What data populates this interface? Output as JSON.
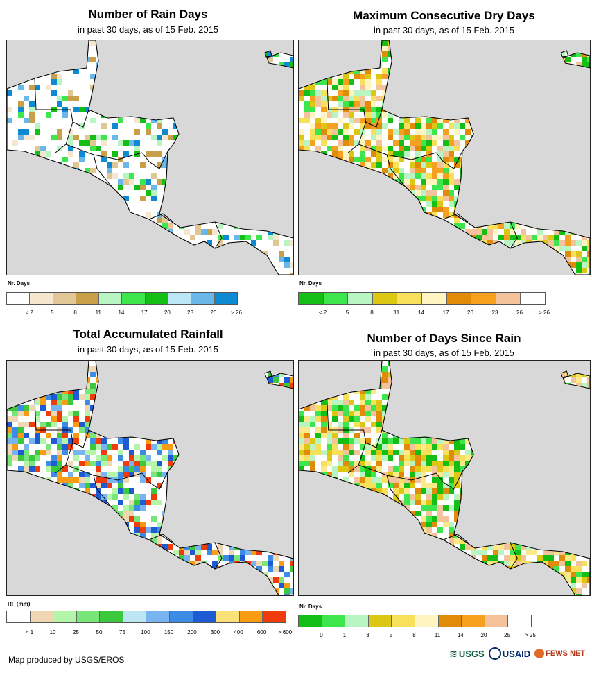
{
  "panels": [
    {
      "title": "Number of Rain Days",
      "subtitle": "in past 30 days, as of 15 Feb. 2015",
      "legend_title": "Nr. Days",
      "colors": [
        "#ffffff",
        "#f5e6cf",
        "#e2c796",
        "#c9a04a",
        "#b9f5c3",
        "#3ee64e",
        "#14be14",
        "#bde6f5",
        "#6ab7ea",
        "#0d8ad2"
      ],
      "tick_labels": [
        "< 2",
        "5",
        "8",
        "11",
        "14",
        "17",
        "20",
        "23",
        "26",
        "> 26"
      ],
      "pixel_palette": [
        "#f5e6cf",
        "#e2c796",
        "#c9a04a",
        "#b9f5c3",
        "#3ee64e",
        "#14be14",
        "#6ab7ea",
        "#0d8ad2"
      ]
    },
    {
      "title": "Maximum Consecutive Dry Days",
      "subtitle": "in past 30 days, as of 15 Feb. 2015",
      "legend_title": "Nr. Days",
      "colors": [
        "#14be14",
        "#3ee64e",
        "#b9f5c3",
        "#dcc814",
        "#f7e15a",
        "#fff5c3",
        "#e08c0a",
        "#f5a01e",
        "#f5c39b",
        "#ffffff"
      ],
      "tick_labels": [
        "< 2",
        "5",
        "8",
        "11",
        "14",
        "17",
        "20",
        "23",
        "26",
        "> 26"
      ],
      "pixel_palette": [
        "#e08c0a",
        "#f5a01e",
        "#f5c39b",
        "#f7e15a",
        "#fff5c3",
        "#dcc814",
        "#3ee64e",
        "#14be14",
        "#b9f5c3"
      ]
    },
    {
      "title": "Total Accumulated Rainfall",
      "subtitle": "in past 30 days, as of 15 Feb. 2015",
      "legend_title": "RF (mm)",
      "colors": [
        "#ffffff",
        "#f0d7b4",
        "#b4f5aa",
        "#78e678",
        "#3cc83c",
        "#bde6f5",
        "#78b4f0",
        "#3c8ce6",
        "#1e5ad2",
        "#fae178",
        "#fa9b14",
        "#f03c0a"
      ],
      "tick_labels": [
        "< 1",
        "10",
        "25",
        "50",
        "75",
        "100",
        "150",
        "200",
        "300",
        "400",
        "600",
        "> 600"
      ],
      "pixel_palette": [
        "#f0d7b4",
        "#b4f5aa",
        "#78e678",
        "#3cc83c",
        "#78b4f0",
        "#3c8ce6",
        "#1e5ad2",
        "#fa9b14",
        "#f03c0a"
      ]
    },
    {
      "title": "Number of Days Since Rain",
      "subtitle": "in past 30 days, as of 15 Feb. 2015",
      "legend_title": "Nr. Days",
      "colors": [
        "#14be14",
        "#3ee64e",
        "#b9f5c3",
        "#dcc814",
        "#f7e15a",
        "#fff5c3",
        "#e08c0a",
        "#f5a01e",
        "#f5c39b",
        "#ffffff"
      ],
      "tick_labels": [
        "0",
        "1",
        "3",
        "5",
        "8",
        "11",
        "14",
        "20",
        "25",
        "> 25"
      ],
      "pixel_palette": [
        "#f7e15a",
        "#fce98a",
        "#dcc814",
        "#f5c39b",
        "#e08c0a",
        "#3ee64e",
        "#14be14",
        "#b9f5c3"
      ]
    }
  ],
  "footer": "Map produced by USGS/EROS",
  "logos": {
    "usgs": "USGS",
    "usaid": "USAID",
    "fews": "FEWS NET"
  },
  "colors": {
    "land": "#ffffff",
    "ocean": "#d8d8d8",
    "border": "#000000"
  }
}
